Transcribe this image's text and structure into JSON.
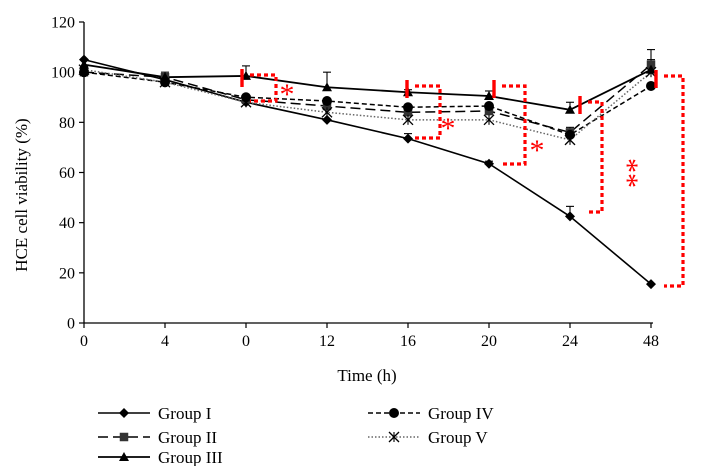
{
  "chart_data": {
    "type": "line",
    "title": "",
    "xlabel": "Time (h)",
    "ylabel": "HCE cell viability (%)",
    "categories": [
      "0",
      "4",
      "0",
      "12",
      "16",
      "20",
      "24",
      "48"
    ],
    "ylim": [
      0,
      120
    ],
    "yticks": [
      0,
      20,
      40,
      60,
      80,
      100,
      120
    ],
    "grid": false,
    "legend_position": "bottom",
    "series": [
      {
        "name": "Group I",
        "marker": "diamond",
        "dash": "solid",
        "values": [
          105,
          97,
          88,
          81,
          73.5,
          63.5,
          42.5,
          15.5
        ],
        "errors": [
          0,
          0,
          0,
          0,
          2,
          1,
          4,
          0
        ]
      },
      {
        "name": "Group II",
        "marker": "square",
        "dash": "longdash",
        "values": [
          100,
          98,
          89,
          86.5,
          84,
          84.5,
          76,
          103
        ],
        "errors": [
          0,
          2,
          0,
          0,
          0,
          0,
          2,
          6
        ]
      },
      {
        "name": "Group III",
        "marker": "triangle",
        "dash": "solid",
        "values": [
          103,
          98,
          98.5,
          94,
          92,
          90.5,
          85,
          101
        ],
        "errors": [
          0,
          0,
          4,
          6,
          1,
          2,
          3,
          4
        ]
      },
      {
        "name": "Group IV",
        "marker": "circle",
        "dash": "shortdash",
        "values": [
          100,
          96,
          90,
          88.5,
          86,
          86.5,
          75,
          94.5
        ],
        "errors": [
          0,
          0,
          0,
          0,
          0,
          0,
          0,
          0
        ]
      },
      {
        "name": "Group V",
        "marker": "x",
        "dash": "dotted",
        "values": [
          101,
          96,
          88,
          84,
          81,
          81,
          73,
          100
        ],
        "errors": [
          0,
          0,
          0,
          0,
          0,
          0,
          0,
          0
        ]
      }
    ],
    "significance": [
      {
        "label": "*",
        "color": "#ff0000"
      },
      {
        "label": "*",
        "color": "#ff0000"
      },
      {
        "label": "*",
        "color": "#ff0000"
      },
      {
        "label": "**",
        "color": "#ff0000"
      },
      {
        "label": "**",
        "color": "#ff0000"
      }
    ]
  }
}
